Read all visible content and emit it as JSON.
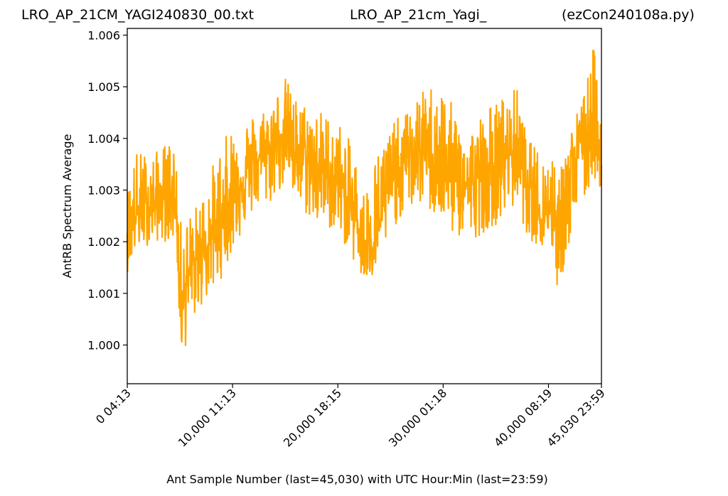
{
  "titles": {
    "left": "LRO_AP_21CM_YAGI240830_00.txt",
    "middle": "LRO_AP_21cm_Yagi_",
    "right": "(ezCon240108a.py)"
  },
  "chart_data": {
    "type": "line",
    "xlabel": "Ant Sample Number (last=45,030) with UTC Hour:Min (last=23:59)",
    "ylabel": "AntRB Spectrum Average",
    "xlim": [
      0,
      45030
    ],
    "ylim": [
      0.99925,
      1.00613
    ],
    "line_color": "#ffa500",
    "grid": false,
    "x_ticks": [
      {
        "value": 0,
        "label": "0  04:13"
      },
      {
        "value": 10000,
        "label": "10,000  11:13"
      },
      {
        "value": 20000,
        "label": "20,000  18:15"
      },
      {
        "value": 30000,
        "label": "30,000  01:18"
      },
      {
        "value": 40000,
        "label": "40,000  08:19"
      },
      {
        "value": 45030,
        "label": "45,030  23:59"
      }
    ],
    "y_ticks": [
      {
        "value": 1.0,
        "label": "1.000"
      },
      {
        "value": 1.001,
        "label": "1.001"
      },
      {
        "value": 1.002,
        "label": "1.002"
      },
      {
        "value": 1.003,
        "label": "1.003"
      },
      {
        "value": 1.004,
        "label": "1.004"
      },
      {
        "value": 1.005,
        "label": "1.005"
      },
      {
        "value": 1.006,
        "label": "1.006"
      }
    ],
    "series": [
      {
        "x": [
          0,
          800,
          2500,
          4500,
          4700,
          5000,
          6500,
          8500,
          10000,
          12000,
          13500,
          15000,
          16000,
          18000,
          20000,
          21500,
          22500,
          23500,
          25000,
          26500,
          28000,
          29500,
          31000,
          32500,
          34000,
          35500,
          37000,
          38000,
          39500,
          40500,
          41000,
          41500,
          42500,
          43500,
          44300,
          45030
        ],
        "mid": [
          1.0023,
          1.0025,
          1.00275,
          1.0029,
          1.0026,
          1.001,
          1.0016,
          1.0022,
          1.003,
          1.0035,
          1.0038,
          1.0042,
          1.0037,
          1.0034,
          1.0031,
          1.0026,
          1.0019,
          1.0021,
          1.0031,
          1.0036,
          1.0038,
          1.0036,
          1.0032,
          1.0031,
          1.0033,
          1.0035,
          1.0039,
          1.003,
          1.0025,
          1.0027,
          1.0025,
          1.0028,
          1.0036,
          1.0039,
          1.0045,
          1.0037
        ],
        "high": [
          1.003,
          1.0038,
          1.0037,
          1.0041,
          1.0032,
          1.0024,
          1.0027,
          1.0037,
          1.0043,
          1.0045,
          1.0047,
          1.0052,
          1.0048,
          1.0046,
          1.0044,
          1.0038,
          1.003,
          1.0037,
          1.0043,
          1.0045,
          1.0049,
          1.0052,
          1.0046,
          1.0042,
          1.0046,
          1.0048,
          1.005,
          1.004,
          1.0037,
          1.0038,
          1.0032,
          1.004,
          1.0044,
          1.005,
          1.0058,
          1.0046
        ],
        "low": [
          1.0014,
          1.0018,
          1.002,
          1.002,
          1.002,
          0.9996,
          1.0006,
          1.0011,
          1.0018,
          1.0026,
          1.0027,
          1.0031,
          1.0027,
          1.0023,
          1.0022,
          1.0016,
          1.0011,
          1.0013,
          1.0022,
          1.0026,
          1.0027,
          1.0024,
          1.0021,
          1.002,
          1.0022,
          1.0024,
          1.0027,
          1.0021,
          1.0018,
          1.0018,
          1.0004,
          1.0016,
          1.0023,
          1.0028,
          1.0032,
          1.003
        ]
      }
    ]
  }
}
